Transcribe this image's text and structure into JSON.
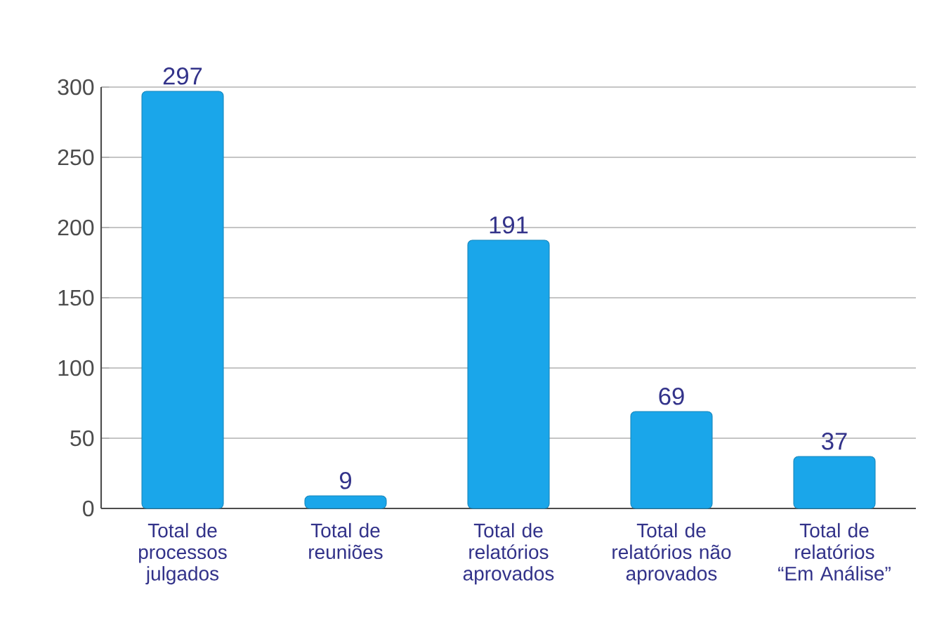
{
  "chart_data": {
    "type": "bar",
    "categories": [
      "Total de processos julgados",
      "Total de reuniões",
      "Total de relatórios aprovados",
      "Total de relatórios não aprovados",
      "Total de relatórios “Em Análise”"
    ],
    "values": [
      297,
      9,
      191,
      69,
      37
    ],
    "color": "#1aa6ea",
    "ylim": [
      0,
      300
    ],
    "yticks": [
      0,
      50,
      100,
      150,
      200,
      250,
      300
    ],
    "grid": "y",
    "data_labels": true
  }
}
